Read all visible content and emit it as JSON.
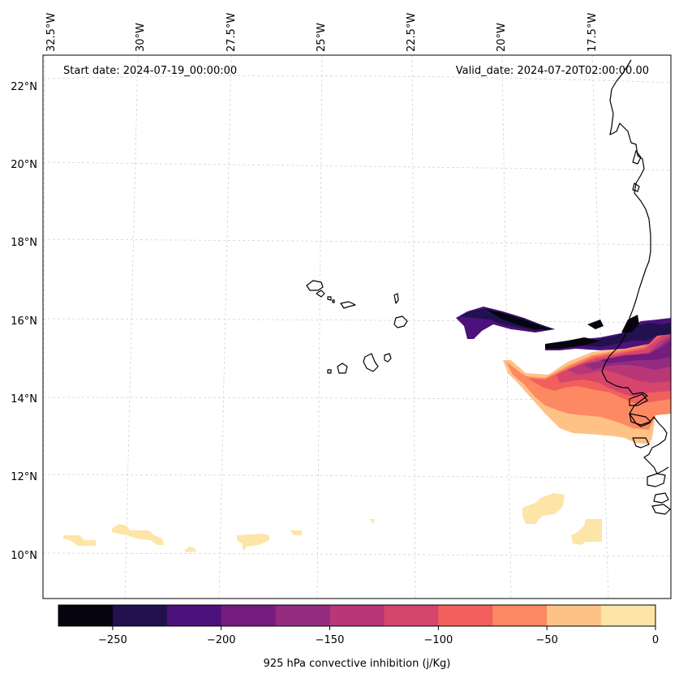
{
  "map": {
    "start_date": "Start date: 2024-07-19_00:00:00",
    "valid_date": "Valid_date: 2024-07-20T02:00:00.00",
    "lon_labels": [
      "32.5°W",
      "30°W",
      "27.5°W",
      "25°W",
      "22.5°W",
      "20°W",
      "17.5°W"
    ],
    "lat_labels": [
      "22°N",
      "20°N",
      "18°N",
      "16°N",
      "14°N",
      "12°N",
      "10°N"
    ]
  },
  "colorbar": {
    "label": "925 hPa convective inhibition (j/Kg)",
    "tick_labels": [
      "−250",
      "−200",
      "−150",
      "−100",
      "−50",
      "0"
    ],
    "colors": [
      "#05040f",
      "#21114e",
      "#4c117a",
      "#741c7f",
      "#932b7f",
      "#b73779",
      "#d6456c",
      "#f1605d",
      "#fc8961",
      "#fec287",
      "#fde5a7"
    ]
  },
  "colors": {
    "coastline": "#000000",
    "gridline": "#cccccc"
  }
}
